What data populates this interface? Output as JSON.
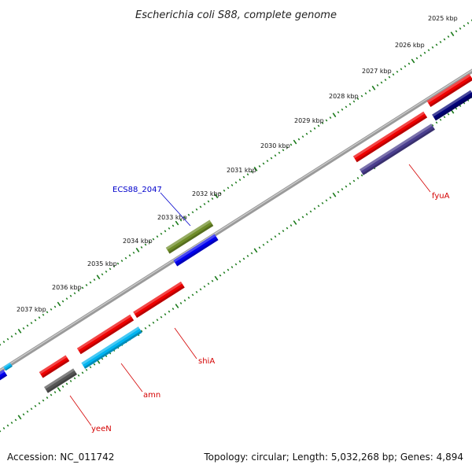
{
  "title": "Escherichia coli S88, complete genome",
  "footer": {
    "accession": "Accession: NC_011742",
    "summary": "Topology: circular; Length: 5,032,268 bp; Genes: 4,894"
  },
  "ticks": [
    {
      "label": "2025 kbp"
    },
    {
      "label": "2026 kbp"
    },
    {
      "label": "2027 kbp"
    },
    {
      "label": "2028 kbp"
    },
    {
      "label": "2029 kbp"
    },
    {
      "label": "2030 kbp"
    },
    {
      "label": "2031 kbp"
    },
    {
      "label": "2032 kbp"
    },
    {
      "label": "2033 kbp"
    },
    {
      "label": "2034 kbp"
    },
    {
      "label": "2035 kbp"
    },
    {
      "label": "2036 kbp"
    },
    {
      "label": "2037 kbp"
    }
  ],
  "gene_labels": [
    {
      "name": "fyuA",
      "color": "#d40000"
    },
    {
      "name": "shiA",
      "color": "#d40000"
    },
    {
      "name": "amn",
      "color": "#d40000"
    },
    {
      "name": "yeeN",
      "color": "#d40000"
    },
    {
      "name": "ECS88_2047",
      "color": "#0000cc"
    }
  ],
  "colors": {
    "backbone": "#8a8a8a",
    "tick": "#1a7a1a",
    "red": "#ee0000",
    "blue": "#0000ee",
    "navy": "#000077",
    "slate": "#4a3e8e",
    "olive": "#6e8c28",
    "cyan": "#00b4f0",
    "gray": "#555555"
  }
}
